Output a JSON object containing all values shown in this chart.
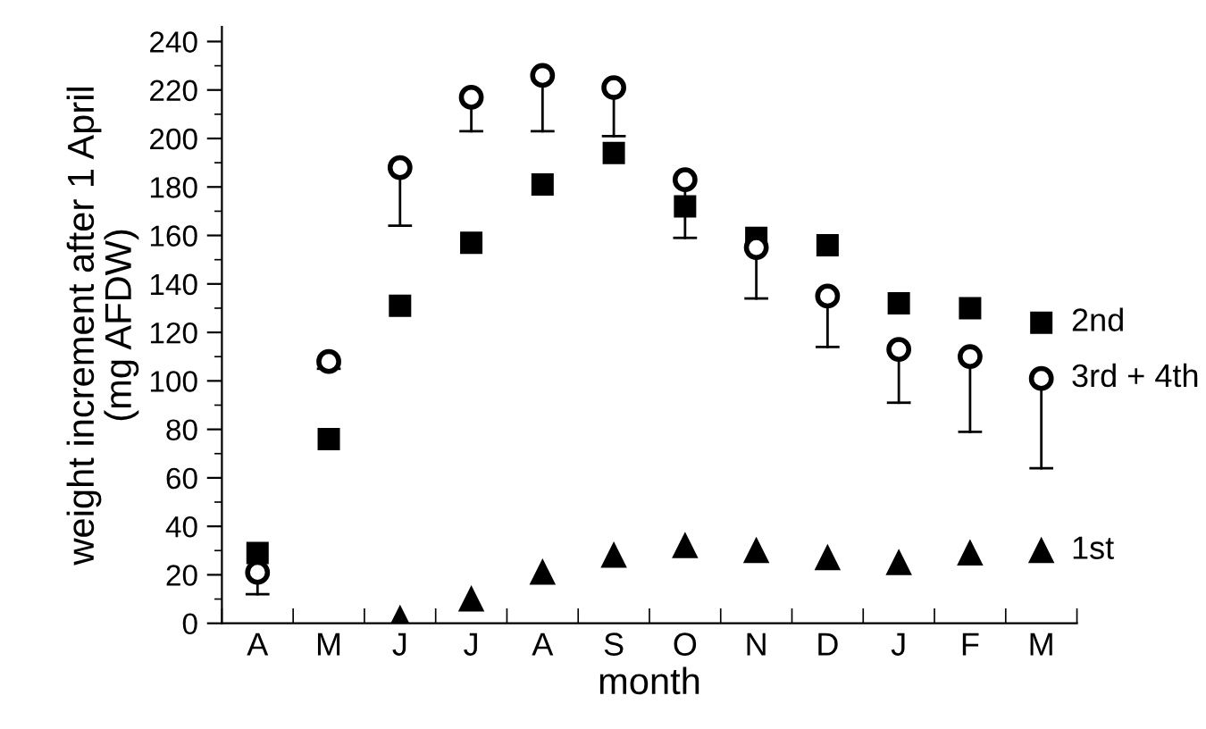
{
  "chart_data": {
    "type": "scatter",
    "xlabel": "month",
    "ylabel": "weight increment after 1 April\n(mg AFDW)",
    "categories": [
      "A",
      "M",
      "J",
      "J",
      "A",
      "S",
      "O",
      "N",
      "D",
      "J",
      "F",
      "M"
    ],
    "ylim": [
      0,
      246
    ],
    "yticks": [
      0,
      20,
      40,
      60,
      80,
      100,
      120,
      140,
      160,
      180,
      200,
      220,
      240
    ],
    "grid": false,
    "legend": false,
    "series": [
      {
        "name": "2nd",
        "color": "#000000",
        "marker": "square",
        "values": [
          29,
          76,
          131,
          157,
          181,
          194,
          172,
          159,
          156,
          132,
          130,
          124
        ]
      },
      {
        "name": "3rd + 4th",
        "color": "#000000",
        "marker": "circle",
        "values": [
          21,
          108,
          188,
          217,
          226,
          221,
          183,
          155,
          135,
          113,
          110,
          101
        ],
        "errors": [
          [
            12,
            21
          ],
          [
            105,
            108
          ],
          [
            164,
            188
          ],
          [
            203,
            217
          ],
          [
            203,
            226
          ],
          [
            201,
            221
          ],
          [
            159,
            183
          ],
          [
            134,
            155
          ],
          [
            114,
            135
          ],
          [
            91,
            113
          ],
          [
            79,
            110
          ],
          [
            64,
            101
          ]
        ]
      },
      {
        "name": "1st",
        "color": "#000000",
        "marker": "triangle",
        "values": [
          null,
          null,
          2,
          10,
          21,
          28,
          32,
          30,
          27,
          25,
          29,
          30
        ]
      }
    ]
  }
}
